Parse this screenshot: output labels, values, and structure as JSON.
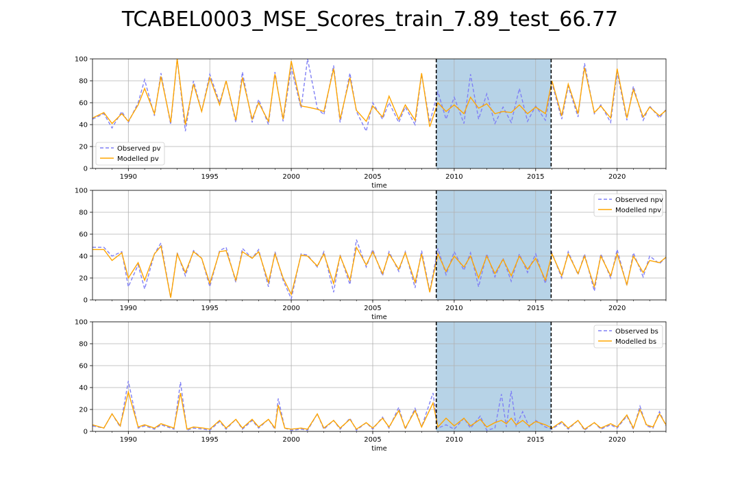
{
  "figure": {
    "title": "TCABEL0003_MSE_Scores_train_7.89_test_66.77"
  },
  "colors": {
    "observed": "#7f7ff5",
    "modelled": "#ffa500",
    "test_span": "#b7d3e7",
    "grid": "#b0b0b0",
    "boundary": "#000000"
  },
  "chart_data": [
    {
      "type": "line",
      "title": "",
      "xlabel": "time",
      "ylabel": "",
      "xlim": [
        1987.8,
        2023.0
      ],
      "ylim": [
        0,
        100
      ],
      "x_ticks": [
        1990,
        1995,
        2000,
        2005,
        2010,
        2015,
        2020
      ],
      "y_ticks": [
        0,
        20,
        40,
        60,
        80,
        100
      ],
      "grid": true,
      "legend": "lower-left",
      "highlight_span": [
        2008.9,
        2015.95
      ],
      "series": [
        {
          "name": "Observed pv",
          "style": "dashed",
          "x": [
            1987.8,
            1988.5,
            1989.0,
            1989.6,
            1990.0,
            1990.6,
            1991.0,
            1991.6,
            1992.0,
            1992.6,
            1993.0,
            1993.5,
            1994.0,
            1994.5,
            1995.0,
            1995.6,
            1996.0,
            1996.6,
            1997.0,
            1997.6,
            1998.0,
            1998.6,
            1999.0,
            1999.5,
            2000.0,
            2000.6,
            2001.0,
            2001.6,
            2002.0,
            2002.6,
            2003.0,
            2003.6,
            2004.0,
            2004.6,
            2005.0,
            2005.6,
            2006.0,
            2006.6,
            2007.0,
            2007.6,
            2008.0,
            2008.5,
            2009.0,
            2009.5,
            2010.0,
            2010.6,
            2011.0,
            2011.5,
            2012.0,
            2012.5,
            2013.0,
            2013.5,
            2014.0,
            2014.5,
            2015.0,
            2015.6,
            2016.0,
            2016.6,
            2017.0,
            2017.6,
            2018.0,
            2018.6,
            2019.0,
            2019.6,
            2020.0,
            2020.6,
            2021.0,
            2021.6,
            2022.0,
            2022.6,
            2023.0
          ],
          "values": [
            45,
            50,
            37,
            52,
            42,
            60,
            81,
            48,
            87,
            40,
            100,
            34,
            80,
            52,
            86,
            60,
            80,
            42,
            88,
            42,
            63,
            40,
            88,
            43,
            92,
            55,
            100,
            55,
            49,
            94,
            42,
            87,
            52,
            34,
            60,
            45,
            60,
            42,
            56,
            40,
            86,
            42,
            70,
            45,
            65,
            41,
            86,
            45,
            68,
            41,
            56,
            42,
            73,
            43,
            57,
            44,
            78,
            45,
            75,
            47,
            96,
            50,
            58,
            42,
            88,
            44,
            75,
            44,
            57,
            46,
            54
          ]
        },
        {
          "name": "Modelled pv",
          "style": "solid",
          "x": [
            1987.8,
            1988.5,
            1989.0,
            1989.6,
            1990.0,
            1990.6,
            1991.0,
            1991.6,
            1992.0,
            1992.6,
            1993.0,
            1993.5,
            1994.0,
            1994.5,
            1995.0,
            1995.6,
            1996.0,
            1996.6,
            1997.0,
            1997.6,
            1998.0,
            1998.6,
            1999.0,
            1999.5,
            2000.0,
            2000.6,
            2001.0,
            2001.6,
            2002.0,
            2002.6,
            2003.0,
            2003.6,
            2004.0,
            2004.6,
            2005.0,
            2005.6,
            2006.0,
            2006.6,
            2007.0,
            2007.6,
            2008.0,
            2008.5,
            2009.0,
            2009.5,
            2010.0,
            2010.6,
            2011.0,
            2011.5,
            2012.0,
            2012.5,
            2013.0,
            2013.5,
            2014.0,
            2014.5,
            2015.0,
            2015.6,
            2016.0,
            2016.6,
            2017.0,
            2017.6,
            2018.0,
            2018.6,
            2019.0,
            2019.6,
            2020.0,
            2020.6,
            2021.0,
            2021.6,
            2022.0,
            2022.6,
            2023.0
          ],
          "values": [
            46,
            51,
            41,
            50,
            43,
            58,
            73,
            50,
            84,
            42,
            100,
            40,
            77,
            52,
            83,
            58,
            80,
            44,
            83,
            45,
            60,
            43,
            86,
            45,
            98,
            57,
            56,
            54,
            52,
            91,
            45,
            83,
            53,
            43,
            57,
            47,
            66,
            45,
            58,
            44,
            87,
            38,
            60,
            52,
            58,
            50,
            65,
            55,
            59,
            50,
            52,
            51,
            58,
            50,
            56,
            50,
            80,
            48,
            77,
            50,
            92,
            51,
            57,
            46,
            91,
            46,
            72,
            47,
            56,
            48,
            53
          ]
        }
      ]
    },
    {
      "type": "line",
      "title": "",
      "xlabel": "time",
      "ylabel": "",
      "xlim": [
        1987.8,
        2023.0
      ],
      "ylim": [
        0,
        100
      ],
      "x_ticks": [
        1990,
        1995,
        2000,
        2005,
        2010,
        2015,
        2020
      ],
      "y_ticks": [
        0,
        20,
        40,
        60,
        80,
        100
      ],
      "grid": true,
      "legend": "upper-right",
      "highlight_span": [
        2008.9,
        2015.95
      ],
      "series": [
        {
          "name": "Observed npv",
          "style": "dashed",
          "x": [
            1987.8,
            1988.5,
            1989.0,
            1989.6,
            1990.0,
            1990.6,
            1991.0,
            1991.6,
            1992.0,
            1992.6,
            1993.0,
            1993.5,
            1994.0,
            1994.5,
            1995.0,
            1995.6,
            1996.0,
            1996.6,
            1997.0,
            1997.6,
            1998.0,
            1998.6,
            1999.0,
            1999.5,
            2000.0,
            2000.6,
            2001.0,
            2001.6,
            2002.0,
            2002.6,
            2003.0,
            2003.6,
            2004.0,
            2004.6,
            2005.0,
            2005.6,
            2006.0,
            2006.6,
            2007.0,
            2007.6,
            2008.0,
            2008.5,
            2009.0,
            2009.5,
            2010.0,
            2010.6,
            2011.0,
            2011.5,
            2012.0,
            2012.5,
            2013.0,
            2013.5,
            2014.0,
            2014.5,
            2015.0,
            2015.6,
            2016.0,
            2016.6,
            2017.0,
            2017.6,
            2018.0,
            2018.6,
            2019.0,
            2019.6,
            2020.0,
            2020.6,
            2021.0,
            2021.6,
            2022.0,
            2022.6,
            2023.0
          ],
          "values": [
            48,
            48,
            40,
            44,
            12,
            32,
            10,
            42,
            52,
            2,
            43,
            22,
            45,
            38,
            12,
            45,
            48,
            16,
            47,
            38,
            46,
            12,
            44,
            18,
            1,
            42,
            41,
            30,
            44,
            7,
            41,
            14,
            55,
            30,
            46,
            22,
            44,
            26,
            44,
            11,
            45,
            8,
            47,
            23,
            44,
            27,
            43,
            12,
            42,
            21,
            38,
            17,
            42,
            25,
            42,
            15,
            43,
            20,
            44,
            23,
            42,
            8,
            42,
            20,
            46,
            13,
            43,
            21,
            40,
            33,
            39
          ]
        },
        {
          "name": "Modelled npv",
          "style": "solid",
          "x": [
            1987.8,
            1988.5,
            1989.0,
            1989.6,
            1990.0,
            1990.6,
            1991.0,
            1991.6,
            1992.0,
            1992.6,
            1993.0,
            1993.5,
            1994.0,
            1994.5,
            1995.0,
            1995.6,
            1996.0,
            1996.6,
            1997.0,
            1997.6,
            1998.0,
            1998.6,
            1999.0,
            1999.5,
            2000.0,
            2000.6,
            2001.0,
            2001.6,
            2002.0,
            2002.6,
            2003.0,
            2003.6,
            2004.0,
            2004.6,
            2005.0,
            2005.6,
            2006.0,
            2006.6,
            2007.0,
            2007.6,
            2008.0,
            2008.5,
            2009.0,
            2009.5,
            2010.0,
            2010.6,
            2011.0,
            2011.5,
            2012.0,
            2012.5,
            2013.0,
            2013.5,
            2014.0,
            2014.5,
            2015.0,
            2015.6,
            2016.0,
            2016.6,
            2017.0,
            2017.6,
            2018.0,
            2018.6,
            2019.0,
            2019.6,
            2020.0,
            2020.6,
            2021.0,
            2021.6,
            2022.0,
            2022.6,
            2023.0
          ],
          "values": [
            46,
            46,
            36,
            43,
            20,
            34,
            18,
            42,
            49,
            2,
            42,
            25,
            44,
            38,
            15,
            44,
            45,
            18,
            44,
            38,
            44,
            16,
            42,
            20,
            5,
            41,
            40,
            31,
            42,
            15,
            40,
            18,
            48,
            32,
            44,
            24,
            42,
            28,
            43,
            16,
            42,
            7,
            42,
            26,
            40,
            30,
            40,
            20,
            40,
            24,
            37,
            22,
            40,
            28,
            38,
            18,
            42,
            22,
            42,
            24,
            40,
            12,
            40,
            22,
            42,
            14,
            40,
            25,
            36,
            34,
            39
          ]
        }
      ]
    },
    {
      "type": "line",
      "title": "",
      "xlabel": "time",
      "ylabel": "",
      "xlim": [
        1987.8,
        2023.0
      ],
      "ylim": [
        0,
        100
      ],
      "x_ticks": [
        1990,
        1995,
        2000,
        2005,
        2010,
        2015,
        2020
      ],
      "y_ticks": [
        0,
        20,
        40,
        60,
        80,
        100
      ],
      "grid": true,
      "legend": "upper-right",
      "highlight_span": [
        2008.9,
        2015.95
      ],
      "series": [
        {
          "name": "Observed bs",
          "style": "dashed",
          "x": [
            1987.8,
            1988.5,
            1989.0,
            1989.5,
            1990.0,
            1990.6,
            1991.0,
            1991.6,
            1992.0,
            1992.8,
            1993.2,
            1993.6,
            1994.0,
            1994.6,
            1995.0,
            1995.6,
            1996.0,
            1996.6,
            1997.0,
            1997.6,
            1998.0,
            1998.6,
            1999.0,
            1999.2,
            1999.6,
            2000.0,
            2000.6,
            2001.0,
            2001.6,
            2002.0,
            2002.6,
            2003.0,
            2003.6,
            2004.0,
            2004.6,
            2005.0,
            2005.6,
            2006.0,
            2006.6,
            2007.0,
            2007.6,
            2008.0,
            2008.7,
            2009.0,
            2009.5,
            2010.0,
            2010.6,
            2011.0,
            2011.6,
            2012.0,
            2012.5,
            2012.9,
            2013.2,
            2013.5,
            2013.8,
            2014.2,
            2014.6,
            2015.0,
            2015.6,
            2016.0,
            2016.6,
            2017.0,
            2017.6,
            2018.0,
            2018.6,
            2019.0,
            2019.6,
            2020.0,
            2020.6,
            2021.0,
            2021.4,
            2021.8,
            2022.2,
            2022.6,
            2023.0
          ],
          "values": [
            5,
            3,
            16,
            4,
            46,
            3,
            5,
            2,
            6,
            2,
            45,
            1,
            3,
            2,
            1,
            9,
            2,
            11,
            2,
            10,
            3,
            11,
            2,
            30,
            3,
            1,
            2,
            1,
            16,
            2,
            10,
            2,
            12,
            1,
            8,
            2,
            13,
            3,
            22,
            2,
            21,
            4,
            35,
            3,
            6,
            2,
            12,
            3,
            14,
            1,
            3,
            34,
            4,
            37,
            5,
            18,
            4,
            10,
            4,
            2,
            8,
            2,
            10,
            1,
            8,
            2,
            6,
            3,
            14,
            2,
            23,
            5,
            3,
            18,
            5
          ]
        },
        {
          "name": "Modelled bs",
          "style": "solid",
          "x": [
            1987.8,
            1988.5,
            1989.0,
            1989.5,
            1990.0,
            1990.6,
            1991.0,
            1991.6,
            1992.0,
            1992.8,
            1993.2,
            1993.6,
            1994.0,
            1994.6,
            1995.0,
            1995.6,
            1996.0,
            1996.6,
            1997.0,
            1997.6,
            1998.0,
            1998.6,
            1999.0,
            1999.2,
            1999.6,
            2000.0,
            2000.6,
            2001.0,
            2001.6,
            2002.0,
            2002.6,
            2003.0,
            2003.6,
            2004.0,
            2004.6,
            2005.0,
            2005.6,
            2006.0,
            2006.6,
            2007.0,
            2007.6,
            2008.0,
            2008.7,
            2009.0,
            2009.5,
            2010.0,
            2010.6,
            2011.0,
            2011.6,
            2012.0,
            2012.5,
            2012.9,
            2013.2,
            2013.5,
            2013.8,
            2014.2,
            2014.6,
            2015.0,
            2015.6,
            2016.0,
            2016.6,
            2017.0,
            2017.6,
            2018.0,
            2018.6,
            2019.0,
            2019.6,
            2020.0,
            2020.6,
            2021.0,
            2021.4,
            2021.8,
            2022.2,
            2022.6,
            2023.0
          ],
          "values": [
            6,
            3,
            16,
            5,
            36,
            4,
            6,
            3,
            7,
            3,
            35,
            2,
            4,
            3,
            2,
            10,
            3,
            11,
            3,
            11,
            4,
            11,
            3,
            24,
            3,
            2,
            3,
            2,
            16,
            3,
            10,
            3,
            11,
            2,
            8,
            3,
            12,
            4,
            19,
            3,
            19,
            4,
            26,
            4,
            12,
            5,
            12,
            5,
            11,
            4,
            8,
            10,
            7,
            12,
            6,
            10,
            5,
            9,
            6,
            3,
            9,
            3,
            10,
            2,
            8,
            3,
            7,
            4,
            15,
            3,
            20,
            6,
            4,
            16,
            6
          ]
        }
      ]
    }
  ]
}
